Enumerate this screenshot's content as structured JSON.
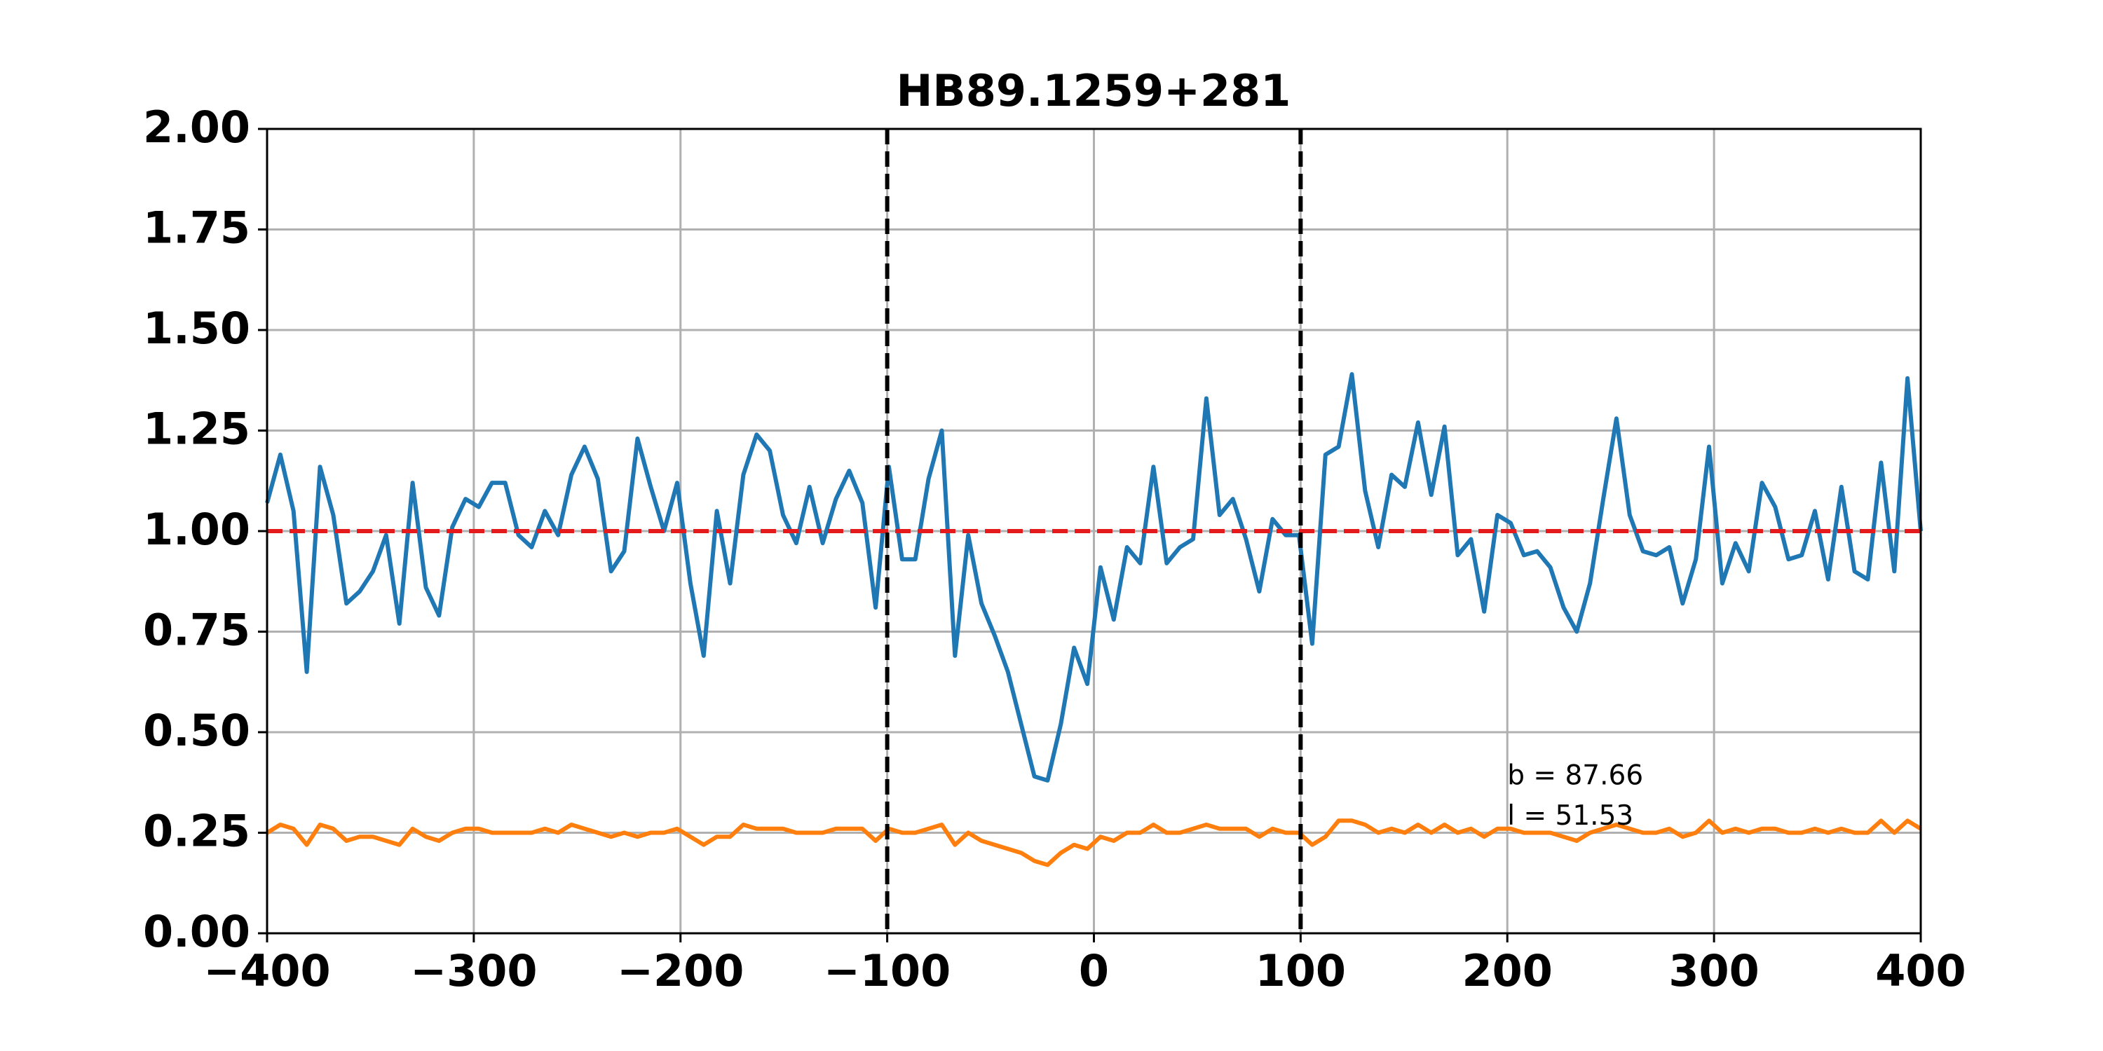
{
  "chart_data": {
    "type": "line",
    "title": "HB89.1259+281",
    "xlim": [
      -400,
      400
    ],
    "ylim": [
      0,
      2
    ],
    "xticks": [
      {
        "value": -400,
        "label": "−400"
      },
      {
        "value": -300,
        "label": "−300"
      },
      {
        "value": -200,
        "label": "−200"
      },
      {
        "value": -100,
        "label": "−100"
      },
      0,
      100,
      200,
      300,
      400
    ],
    "yticks": [
      {
        "value": 0,
        "label": "0.00"
      },
      {
        "value": 0.25,
        "label": "0.25"
      },
      {
        "value": 0.5,
        "label": "0.50"
      },
      {
        "value": 0.75,
        "label": "0.75"
      },
      {
        "value": 1,
        "label": "1.00"
      },
      {
        "value": 1.25,
        "label": "1.25"
      },
      {
        "value": 1.5,
        "label": "1.50"
      },
      {
        "value": 1.75,
        "label": "1.75"
      },
      {
        "value": 2,
        "label": "2.00"
      }
    ],
    "grid": true,
    "x": [
      -400,
      -393.6,
      -387.2,
      -380.8,
      -374.4,
      -368,
      -361.6,
      -355.2,
      -348.8,
      -342.4,
      -336,
      -329.6,
      -323.2,
      -316.8,
      -310.4,
      -304,
      -297.6,
      -291.2,
      -284.8,
      -278.4,
      -272,
      -265.6,
      -259.2,
      -252.8,
      -246.4,
      -240,
      -233.6,
      -227.2,
      -220.8,
      -214.4,
      -208,
      -201.6,
      -195.2,
      -188.8,
      -182.4,
      -176,
      -169.6,
      -163.2,
      -156.8,
      -150.4,
      -144,
      -137.6,
      -131.2,
      -124.8,
      -118.4,
      -112,
      -105.6,
      -99.2,
      -92.8,
      -86.4,
      -80,
      -73.6,
      -67.2,
      -60.8,
      -54.4,
      -48,
      -41.6,
      -35.2,
      -28.8,
      -22.4,
      -16,
      -9.6,
      -3.2,
      3.2,
      9.6,
      16,
      22.4,
      28.8,
      35.2,
      41.6,
      48,
      54.4,
      60.8,
      67.2,
      73.6,
      80,
      86.4,
      92.8,
      99.2,
      105.6,
      112,
      118.4,
      124.8,
      131.2,
      137.6,
      144,
      150.4,
      156.8,
      163.2,
      169.6,
      176,
      182.4,
      188.8,
      195.2,
      201.6,
      208,
      214.4,
      220.8,
      227.2,
      233.6,
      240,
      246.4,
      252.8,
      259.2,
      265.6,
      272,
      278.4,
      284.8,
      291.2,
      297.6,
      304,
      310.4,
      316.8,
      323.2,
      329.6,
      336,
      342.4,
      348.8,
      355.2,
      361.6,
      368,
      374.4,
      380.8,
      387.2,
      393.6,
      400
    ],
    "series": [
      {
        "color": "#1f77b4",
        "values": [
          1.07,
          1.19,
          1.05,
          0.65,
          1.16,
          1.04,
          0.82,
          0.85,
          0.9,
          0.99,
          0.77,
          1.12,
          0.86,
          0.79,
          1.01,
          1.08,
          1.06,
          1.12,
          1.12,
          0.99,
          0.96,
          1.05,
          0.99,
          1.14,
          1.21,
          1.13,
          0.9,
          0.95,
          1.23,
          1.11,
          1.0,
          1.12,
          0.87,
          0.69,
          1.05,
          0.87,
          1.14,
          1.24,
          1.2,
          1.04,
          0.97,
          1.11,
          0.97,
          1.08,
          1.15,
          1.07,
          0.81,
          1.16,
          0.93,
          0.93,
          1.13,
          1.25,
          0.69,
          0.99,
          0.82,
          0.74,
          0.65,
          0.52,
          0.39,
          0.38,
          0.52,
          0.71,
          0.62,
          0.91,
          0.78,
          0.96,
          0.92,
          1.16,
          0.92,
          0.96,
          0.98,
          1.33,
          1.04,
          1.08,
          0.98,
          0.85,
          1.03,
          0.99,
          0.99,
          0.72,
          1.19,
          1.21,
          1.39,
          1.1,
          0.96,
          1.14,
          1.11,
          1.27,
          1.09,
          1.26,
          0.94,
          0.98,
          0.8,
          1.04,
          1.02,
          0.94,
          0.95,
          0.91,
          0.81,
          0.75,
          0.87,
          1.08,
          1.28,
          1.04,
          0.95,
          0.94,
          0.96,
          0.82,
          0.93,
          1.21,
          0.87,
          0.97,
          0.9,
          1.12,
          1.06,
          0.93,
          0.94,
          1.05,
          0.88,
          1.11,
          0.9,
          0.88,
          1.17,
          0.9,
          1.38,
          1.0
        ]
      },
      {
        "color": "#ff7f0e",
        "values": [
          0.25,
          0.27,
          0.26,
          0.22,
          0.27,
          0.26,
          0.23,
          0.24,
          0.24,
          0.23,
          0.22,
          0.26,
          0.24,
          0.23,
          0.25,
          0.26,
          0.26,
          0.25,
          0.25,
          0.25,
          0.25,
          0.26,
          0.25,
          0.27,
          0.26,
          0.25,
          0.24,
          0.25,
          0.24,
          0.25,
          0.25,
          0.26,
          0.24,
          0.22,
          0.24,
          0.24,
          0.27,
          0.26,
          0.26,
          0.26,
          0.25,
          0.25,
          0.25,
          0.26,
          0.26,
          0.26,
          0.23,
          0.26,
          0.25,
          0.25,
          0.26,
          0.27,
          0.22,
          0.25,
          0.23,
          0.22,
          0.21,
          0.2,
          0.18,
          0.17,
          0.2,
          0.22,
          0.21,
          0.24,
          0.23,
          0.25,
          0.25,
          0.27,
          0.25,
          0.25,
          0.26,
          0.27,
          0.26,
          0.26,
          0.26,
          0.24,
          0.26,
          0.25,
          0.25,
          0.22,
          0.24,
          0.28,
          0.28,
          0.27,
          0.25,
          0.26,
          0.25,
          0.27,
          0.25,
          0.27,
          0.25,
          0.26,
          0.24,
          0.26,
          0.26,
          0.25,
          0.25,
          0.25,
          0.24,
          0.23,
          0.25,
          0.26,
          0.27,
          0.26,
          0.25,
          0.25,
          0.26,
          0.24,
          0.25,
          0.28,
          0.25,
          0.26,
          0.25,
          0.26,
          0.26,
          0.25,
          0.25,
          0.26,
          0.25,
          0.26,
          0.25,
          0.25,
          0.28,
          0.25,
          0.28,
          0.26
        ]
      }
    ],
    "hlines": [
      {
        "y": 1,
        "color": "#e41a1c"
      }
    ],
    "vlines": [
      {
        "x": -100,
        "color": "#000000"
      },
      {
        "x": 100,
        "color": "#000000"
      }
    ],
    "annotations": [
      {
        "text": "b = 87.66",
        "x": 200,
        "y": 0.37
      },
      {
        "text": "l = 51.53",
        "x": 200,
        "y": 0.27
      }
    ]
  }
}
